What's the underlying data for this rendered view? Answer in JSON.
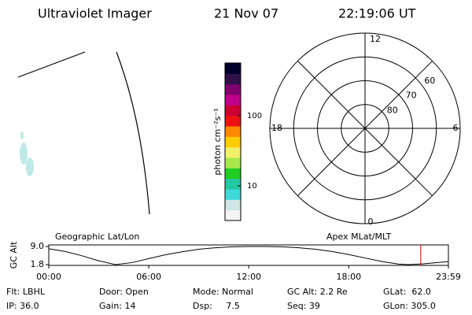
{
  "header": {
    "instrument": "Ultraviolet Imager",
    "date": "21 Nov 07",
    "time": "22:19:06 UT"
  },
  "colorbar": {
    "label": "photon cm⁻²s⁻¹",
    "scale": "log",
    "clim": [
      3.2,
      565
    ],
    "ticks": [
      10,
      100
    ],
    "colors": [
      "#f4f4f4",
      "#cfe6e6",
      "#3fd8d8",
      "#22c8a0",
      "#22cc22",
      "#a8e84a",
      "#f0f06a",
      "#ffcc00",
      "#ff8800",
      "#ee1111",
      "#cc0033",
      "#c0008a",
      "#80006e",
      "#30104a",
      "#00002a"
    ]
  },
  "polar": {
    "mlt_labels": [
      "12",
      "6",
      "0",
      "18"
    ],
    "lat_rings": [
      60,
      70,
      80
    ],
    "outer_lat": 50
  },
  "orbit": {
    "left_label": "Geographic Lat/Lon",
    "right_label": "Apex MLat/MLT",
    "ylabel": "GC Alt",
    "xlim": [
      0,
      23.98
    ],
    "ylim": [
      1.8,
      9.0
    ],
    "yticks": [
      {
        "value": 9.0,
        "label": "9.0"
      },
      {
        "value": 1.8,
        "label": "1.8"
      }
    ],
    "xticks": [
      {
        "value": 0,
        "label": "00:00"
      },
      {
        "value": 6,
        "label": "06:00"
      },
      {
        "value": 12,
        "label": "12:00"
      },
      {
        "value": 18,
        "label": "18:00"
      },
      {
        "value": 23.98,
        "label": "23:59"
      }
    ],
    "x": [
      0,
      1,
      2,
      3,
      4,
      5,
      6,
      7,
      8,
      9,
      10,
      11,
      12,
      13,
      14,
      15,
      16,
      17,
      18,
      19,
      20,
      21,
      21.6,
      22.5,
      23.98
    ],
    "values": [
      8.1,
      7.0,
      5.3,
      3.3,
      1.8,
      2.6,
      4.2,
      5.7,
      6.9,
      7.9,
      8.5,
      8.9,
      9.0,
      9.0,
      8.9,
      8.5,
      7.9,
      7.0,
      5.8,
      4.4,
      3.0,
      2.0,
      1.8,
      2.1,
      3.0
    ],
    "marker_hour": 22.32,
    "marker_color": "#e00000"
  },
  "info": [
    [
      "Flt: LBHL",
      "Door: Open",
      "Mode: Normal",
      "GC Alt: 2.2 Re",
      "GLat:  62.0"
    ],
    [
      "IP: 36.0",
      "Gain: 14",
      "Dsp:     7.5",
      "Seq: 39",
      "GLon: 305.0"
    ]
  ]
}
